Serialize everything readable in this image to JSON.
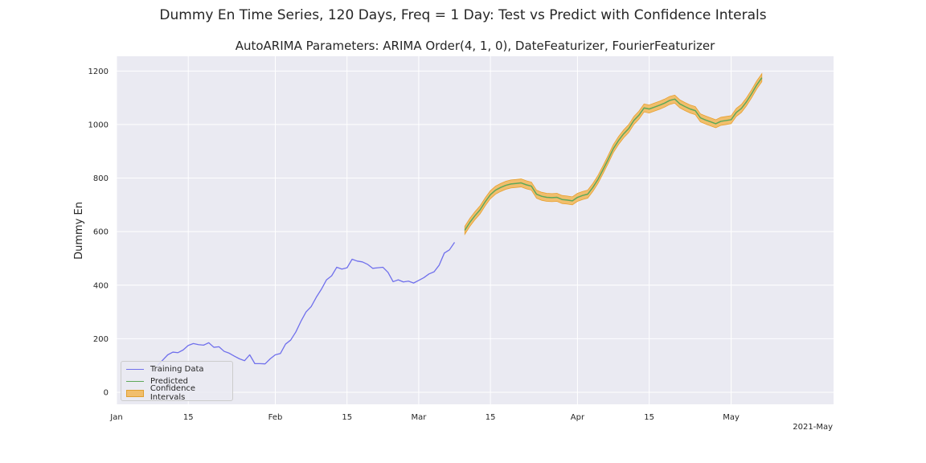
{
  "chart_data": {
    "type": "line",
    "suptitle": "Dummy En Time Series, 120 Days, Freq = 1 Day: Test vs Predict with Confidence Interals",
    "title": "AutoARIMA Parameters: ARIMA Order(4, 1, 0), DateFeaturizer, FourierFeaturizer",
    "xlabel": "",
    "ylabel": "Dummy En",
    "xlim": [
      "2021-01-01",
      "2021-05-21"
    ],
    "ylim": [
      -45,
      1255
    ],
    "yticks": [
      0,
      200,
      400,
      600,
      800,
      1000,
      1200
    ],
    "xticks": [
      {
        "date": "2021-01-01",
        "label": "Jan"
      },
      {
        "date": "2021-01-15",
        "label": "15"
      },
      {
        "date": "2021-02-01",
        "label": "Feb"
      },
      {
        "date": "2021-02-15",
        "label": "15"
      },
      {
        "date": "2021-03-01",
        "label": "Mar"
      },
      {
        "date": "2021-03-15",
        "label": "15"
      },
      {
        "date": "2021-04-01",
        "label": "Apr"
      },
      {
        "date": "2021-04-15",
        "label": "15"
      },
      {
        "date": "2021-05-01",
        "label": "May"
      }
    ],
    "x_offset_label": "2021-May",
    "grid": true,
    "legend_position": "lower-left",
    "series": [
      {
        "name": "Training Data",
        "color": "#7070ec",
        "points": [
          [
            "2021-01-09",
            100
          ],
          [
            "2021-01-10",
            120
          ],
          [
            "2021-01-11",
            140
          ],
          [
            "2021-01-12",
            150
          ],
          [
            "2021-01-13",
            148
          ],
          [
            "2021-01-14",
            158
          ],
          [
            "2021-01-15",
            175
          ],
          [
            "2021-01-16",
            182
          ],
          [
            "2021-01-17",
            178
          ],
          [
            "2021-01-18",
            176
          ],
          [
            "2021-01-19",
            185
          ],
          [
            "2021-01-20",
            168
          ],
          [
            "2021-01-21",
            170
          ],
          [
            "2021-01-22",
            153
          ],
          [
            "2021-01-23",
            146
          ],
          [
            "2021-01-24",
            135
          ],
          [
            "2021-01-25",
            125
          ],
          [
            "2021-01-26",
            118
          ],
          [
            "2021-01-27",
            140
          ],
          [
            "2021-01-28",
            107
          ],
          [
            "2021-01-29",
            107
          ],
          [
            "2021-01-30",
            106
          ],
          [
            "2021-01-31",
            125
          ],
          [
            "2021-02-01",
            140
          ],
          [
            "2021-02-02",
            145
          ],
          [
            "2021-02-03",
            180
          ],
          [
            "2021-02-04",
            195
          ],
          [
            "2021-02-05",
            225
          ],
          [
            "2021-02-06",
            265
          ],
          [
            "2021-02-07",
            300
          ],
          [
            "2021-02-08",
            320
          ],
          [
            "2021-02-09",
            355
          ],
          [
            "2021-02-10",
            385
          ],
          [
            "2021-02-11",
            420
          ],
          [
            "2021-02-12",
            435
          ],
          [
            "2021-02-13",
            467
          ],
          [
            "2021-02-14",
            460
          ],
          [
            "2021-02-15",
            465
          ],
          [
            "2021-02-16",
            497
          ],
          [
            "2021-02-17",
            490
          ],
          [
            "2021-02-18",
            487
          ],
          [
            "2021-02-19",
            478
          ],
          [
            "2021-02-20",
            463
          ],
          [
            "2021-02-21",
            465
          ],
          [
            "2021-02-22",
            467
          ],
          [
            "2021-02-23",
            448
          ],
          [
            "2021-02-24",
            413
          ],
          [
            "2021-02-25",
            420
          ],
          [
            "2021-02-26",
            412
          ],
          [
            "2021-02-27",
            415
          ],
          [
            "2021-02-28",
            408
          ],
          [
            "2021-03-01",
            418
          ],
          [
            "2021-03-02",
            428
          ],
          [
            "2021-03-03",
            442
          ],
          [
            "2021-03-04",
            450
          ],
          [
            "2021-03-05",
            475
          ],
          [
            "2021-03-06",
            520
          ],
          [
            "2021-03-07",
            532
          ],
          [
            "2021-03-08",
            560
          ]
        ]
      },
      {
        "name": "Predicted",
        "color": "#5fa85a",
        "points": [
          [
            "2021-03-10",
            605
          ],
          [
            "2021-03-11",
            635
          ],
          [
            "2021-03-12",
            660
          ],
          [
            "2021-03-13",
            682
          ],
          [
            "2021-03-14",
            712
          ],
          [
            "2021-03-15",
            738
          ],
          [
            "2021-03-16",
            755
          ],
          [
            "2021-03-17",
            765
          ],
          [
            "2021-03-18",
            773
          ],
          [
            "2021-03-19",
            778
          ],
          [
            "2021-03-20",
            780
          ],
          [
            "2021-03-21",
            782
          ],
          [
            "2021-03-22",
            775
          ],
          [
            "2021-03-23",
            770
          ],
          [
            "2021-03-24",
            740
          ],
          [
            "2021-03-25",
            732
          ],
          [
            "2021-03-26",
            728
          ],
          [
            "2021-03-27",
            727
          ],
          [
            "2021-03-28",
            728
          ],
          [
            "2021-03-29",
            720
          ],
          [
            "2021-03-30",
            718
          ],
          [
            "2021-03-31",
            715
          ],
          [
            "2021-04-01",
            728
          ],
          [
            "2021-04-02",
            735
          ],
          [
            "2021-04-03",
            740
          ],
          [
            "2021-04-04",
            765
          ],
          [
            "2021-04-05",
            795
          ],
          [
            "2021-04-06",
            832
          ],
          [
            "2021-04-07",
            870
          ],
          [
            "2021-04-08",
            910
          ],
          [
            "2021-04-09",
            940
          ],
          [
            "2021-04-10",
            965
          ],
          [
            "2021-04-11",
            985
          ],
          [
            "2021-04-12",
            1015
          ],
          [
            "2021-04-13",
            1035
          ],
          [
            "2021-04-14",
            1062
          ],
          [
            "2021-04-15",
            1058
          ],
          [
            "2021-04-16",
            1065
          ],
          [
            "2021-04-17",
            1072
          ],
          [
            "2021-04-18",
            1080
          ],
          [
            "2021-04-19",
            1090
          ],
          [
            "2021-04-20",
            1095
          ],
          [
            "2021-04-21",
            1077
          ],
          [
            "2021-04-22",
            1067
          ],
          [
            "2021-04-23",
            1058
          ],
          [
            "2021-04-24",
            1052
          ],
          [
            "2021-04-25",
            1025
          ],
          [
            "2021-04-26",
            1017
          ],
          [
            "2021-04-27",
            1010
          ],
          [
            "2021-04-28",
            1003
          ],
          [
            "2021-04-29",
            1012
          ],
          [
            "2021-04-30",
            1015
          ],
          [
            "2021-05-01",
            1018
          ],
          [
            "2021-05-02",
            1045
          ],
          [
            "2021-05-03",
            1060
          ],
          [
            "2021-05-04",
            1085
          ],
          [
            "2021-05-05",
            1115
          ],
          [
            "2021-05-06",
            1148
          ],
          [
            "2021-05-07",
            1175
          ]
        ]
      }
    ],
    "confidence_band": {
      "name": "Confidence Intervals",
      "color": "#f5a623",
      "half_width": 15
    }
  }
}
